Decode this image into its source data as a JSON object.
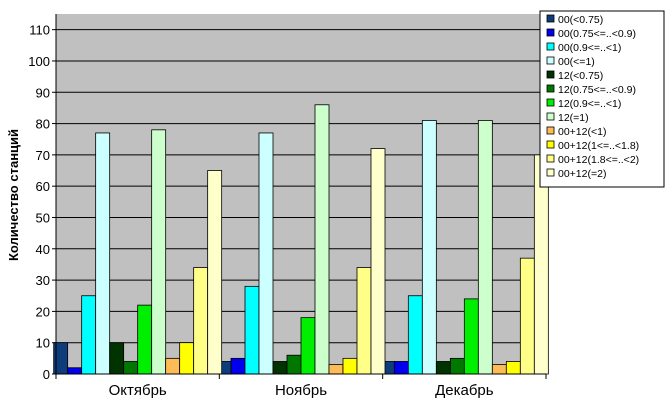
{
  "chart_data": {
    "type": "bar",
    "ylabel": "Количество станций",
    "ylim": [
      0,
      115
    ],
    "yticks": [
      0,
      10,
      20,
      30,
      40,
      50,
      60,
      70,
      80,
      90,
      100,
      110
    ],
    "grid": true,
    "legend_position": "top-right",
    "categories": [
      "Октябрь",
      "Ноябрь",
      "Декабрь"
    ],
    "series": [
      {
        "name": "00(<0.75)",
        "color": "#0f3d7c",
        "values": [
          10,
          4,
          4
        ]
      },
      {
        "name": "00(0.75<=..<0.9)",
        "color": "#0000ee",
        "values": [
          2,
          5,
          4
        ]
      },
      {
        "name": "00(0.9<=..<1)",
        "color": "#00ffff",
        "values": [
          25,
          28,
          25
        ]
      },
      {
        "name": "00(<=1)",
        "color": "#ccffff",
        "values": [
          77,
          77,
          81
        ]
      },
      {
        "name": "12(<0.75)",
        "color": "#003300",
        "values": [
          10,
          4,
          4
        ]
      },
      {
        "name": "12(0.75<=..<0.9)",
        "color": "#007700",
        "values": [
          4,
          6,
          5
        ]
      },
      {
        "name": "12(0.9<=..<1)",
        "color": "#00ee00",
        "values": [
          22,
          18,
          24
        ]
      },
      {
        "name": "12(=1)",
        "color": "#ccffcc",
        "values": [
          78,
          86,
          81
        ]
      },
      {
        "name": "00+12(<1)",
        "color": "#ffbb55",
        "values": [
          5,
          3,
          3
        ]
      },
      {
        "name": "00+12(1<=..<1.8)",
        "color": "#ffff00",
        "values": [
          10,
          5,
          4
        ]
      },
      {
        "name": "00+12(1.8<=..<2)",
        "color": "#ffff88",
        "values": [
          34,
          34,
          37
        ]
      },
      {
        "name": "00+12(=2)",
        "color": "#ffffcc",
        "values": [
          65,
          72,
          70
        ]
      }
    ]
  }
}
